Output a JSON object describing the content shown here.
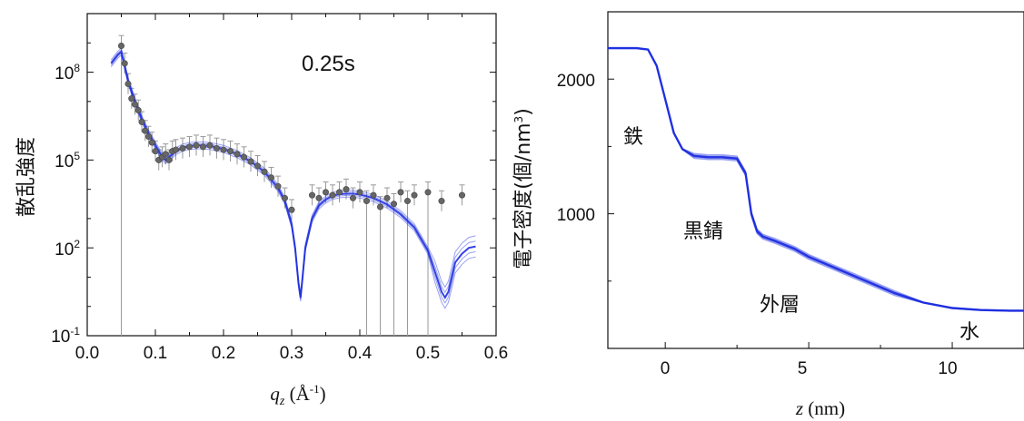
{
  "chart_data": [
    {
      "type": "scatter",
      "scale": "log-y",
      "annotation": "0.25s",
      "ylabel": "散乱強度",
      "xlabel_main": "q",
      "xlabel_sub": "z",
      "xlabel_unit_open": " (Å",
      "xlabel_unit_exp": "-1",
      "xlabel_unit_close": ")",
      "xlim": [
        0.0,
        0.6
      ],
      "ylim_log10": [
        -1,
        10
      ],
      "x_ticks": [
        "0.0",
        "0.1",
        "0.2",
        "0.3",
        "0.4",
        "0.5",
        "0.6"
      ],
      "y_ticks": [
        {
          "base": "10",
          "exp": "-1"
        },
        {
          "base": "10",
          "exp": "2"
        },
        {
          "base": "10",
          "exp": "5"
        },
        {
          "base": "10",
          "exp": "8"
        }
      ],
      "colors": {
        "fit": "#1f2fe0",
        "points": "#666666",
        "errorbars": "#9a9a9a"
      },
      "fit_curve": {
        "name": "fit",
        "x": [
          0.035,
          0.045,
          0.05,
          0.055,
          0.06,
          0.07,
          0.08,
          0.09,
          0.1,
          0.11,
          0.115,
          0.12,
          0.13,
          0.14,
          0.15,
          0.16,
          0.17,
          0.18,
          0.2,
          0.22,
          0.24,
          0.26,
          0.28,
          0.29,
          0.3,
          0.305,
          0.31,
          0.313,
          0.316,
          0.32,
          0.33,
          0.34,
          0.35,
          0.36,
          0.37,
          0.38,
          0.39,
          0.4,
          0.42,
          0.44,
          0.46,
          0.48,
          0.5,
          0.51,
          0.52,
          0.525,
          0.53,
          0.535,
          0.54,
          0.55,
          0.56,
          0.57
        ],
        "log10_y": [
          8.3,
          8.6,
          8.7,
          8.2,
          7.7,
          7.0,
          6.4,
          5.9,
          5.5,
          5.1,
          5.0,
          5.1,
          5.3,
          5.42,
          5.48,
          5.5,
          5.5,
          5.48,
          5.38,
          5.2,
          4.95,
          4.6,
          4.05,
          3.6,
          2.8,
          2.0,
          0.8,
          0.3,
          1.0,
          2.0,
          3.0,
          3.45,
          3.65,
          3.78,
          3.83,
          3.85,
          3.85,
          3.82,
          3.7,
          3.48,
          3.15,
          2.7,
          1.9,
          1.2,
          0.5,
          0.3,
          0.5,
          1.0,
          1.5,
          1.8,
          2.0,
          2.05
        ]
      },
      "data_points": {
        "name": "data",
        "x": [
          0.05,
          0.055,
          0.06,
          0.065,
          0.07,
          0.075,
          0.08,
          0.085,
          0.09,
          0.095,
          0.1,
          0.105,
          0.11,
          0.115,
          0.12,
          0.125,
          0.13,
          0.14,
          0.15,
          0.16,
          0.17,
          0.18,
          0.19,
          0.2,
          0.21,
          0.22,
          0.23,
          0.24,
          0.25,
          0.26,
          0.27,
          0.28,
          0.29,
          0.3,
          0.33,
          0.34,
          0.35,
          0.36,
          0.37,
          0.38,
          0.39,
          0.4,
          0.41,
          0.42,
          0.43,
          0.44,
          0.45,
          0.46,
          0.47,
          0.48,
          0.5,
          0.52,
          0.55
        ],
        "log10_y": [
          8.9,
          8.3,
          7.6,
          7.1,
          6.9,
          6.7,
          6.3,
          6.0,
          5.8,
          5.6,
          5.3,
          5.0,
          5.1,
          5.2,
          5.0,
          5.3,
          5.35,
          5.4,
          5.45,
          5.5,
          5.45,
          5.5,
          5.4,
          5.35,
          5.3,
          5.2,
          5.1,
          4.95,
          4.8,
          4.6,
          4.4,
          4.1,
          3.7,
          3.3,
          3.8,
          3.7,
          3.9,
          3.8,
          3.9,
          4.0,
          3.7,
          3.9,
          3.6,
          3.8,
          3.4,
          3.7,
          3.5,
          3.9,
          3.6,
          3.8,
          3.9,
          3.6,
          3.8
        ]
      }
    },
    {
      "type": "line",
      "ylabel": "電子密度(個/nm",
      "ylabel_exp": "3",
      "ylabel_close": ")",
      "xlabel_var": "z",
      "xlabel_unit": " (nm)",
      "xlim": [
        -2,
        12.5
      ],
      "ylim": [
        0,
        2500
      ],
      "x_ticks": [
        "0",
        "5",
        "10"
      ],
      "y_ticks": [
        "1000",
        "2000"
      ],
      "colors": {
        "profile": "#1f2fe0"
      },
      "series": [
        {
          "x": [
            -2.0,
            -1.0,
            -0.6,
            -0.3,
            0.0,
            0.3,
            0.6,
            1.0,
            1.5,
            2.0,
            2.5,
            2.8,
            3.0,
            3.2,
            3.4,
            3.8,
            4.5,
            5.0,
            6.0,
            7.0,
            8.0,
            9.0,
            10.0,
            11.0,
            12.0,
            12.5
          ],
          "y": [
            2230,
            2230,
            2220,
            2100,
            1850,
            1600,
            1480,
            1430,
            1420,
            1420,
            1410,
            1300,
            1000,
            870,
            830,
            800,
            740,
            680,
            590,
            500,
            410,
            340,
            300,
            285,
            280,
            280
          ]
        }
      ],
      "annotations": [
        "鉄",
        "黒錆",
        "外層",
        "水"
      ]
    }
  ]
}
